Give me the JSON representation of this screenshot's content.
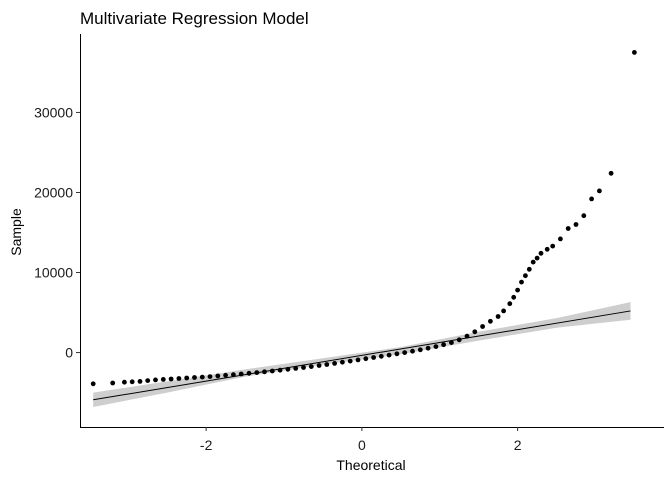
{
  "chart_data": {
    "type": "scatter",
    "title": "Multivariate Regression Model",
    "xlabel": "Theoretical",
    "ylabel": "Sample",
    "xlim": [
      -3.62,
      3.88
    ],
    "ylim": [
      -9300,
      39800
    ],
    "x_ticks": [
      -2,
      0,
      2
    ],
    "x_tick_labels": [
      "-2",
      "0",
      "2"
    ],
    "y_ticks": [
      0,
      10000,
      20000,
      30000
    ],
    "y_tick_labels": [
      "0",
      "10000",
      "20000",
      "30000"
    ],
    "grid": false,
    "legend": "none",
    "series": [
      {
        "kind": "qq-points",
        "color": "#000000",
        "points": [
          [
            -3.45,
            -3900
          ],
          [
            -3.2,
            -3800
          ],
          [
            -3.05,
            -3700
          ],
          [
            -2.95,
            -3650
          ],
          [
            -2.85,
            -3600
          ],
          [
            -2.75,
            -3500
          ],
          [
            -2.65,
            -3420
          ],
          [
            -2.55,
            -3350
          ],
          [
            -2.45,
            -3300
          ],
          [
            -2.35,
            -3240
          ],
          [
            -2.25,
            -3180
          ],
          [
            -2.15,
            -3120
          ],
          [
            -2.05,
            -3060
          ],
          [
            -1.95,
            -3000
          ],
          [
            -1.85,
            -2920
          ],
          [
            -1.75,
            -2840
          ],
          [
            -1.65,
            -2760
          ],
          [
            -1.55,
            -2680
          ],
          [
            -1.45,
            -2590
          ],
          [
            -1.35,
            -2500
          ],
          [
            -1.25,
            -2400
          ],
          [
            -1.15,
            -2300
          ],
          [
            -1.05,
            -2200
          ],
          [
            -0.95,
            -2090
          ],
          [
            -0.85,
            -1980
          ],
          [
            -0.75,
            -1870
          ],
          [
            -0.65,
            -1750
          ],
          [
            -0.55,
            -1620
          ],
          [
            -0.45,
            -1490
          ],
          [
            -0.35,
            -1350
          ],
          [
            -0.25,
            -1210
          ],
          [
            -0.15,
            -1070
          ],
          [
            -0.05,
            -920
          ],
          [
            0.05,
            -770
          ],
          [
            0.15,
            -620
          ],
          [
            0.25,
            -470
          ],
          [
            0.35,
            -320
          ],
          [
            0.45,
            -160
          ],
          [
            0.55,
            0
          ],
          [
            0.65,
            170
          ],
          [
            0.75,
            350
          ],
          [
            0.85,
            540
          ],
          [
            0.95,
            750
          ],
          [
            1.05,
            980
          ],
          [
            1.15,
            1250
          ],
          [
            1.25,
            1600
          ],
          [
            1.35,
            2050
          ],
          [
            1.45,
            2600
          ],
          [
            1.55,
            3250
          ],
          [
            1.65,
            3900
          ],
          [
            1.75,
            4500
          ],
          [
            1.82,
            5200
          ],
          [
            1.9,
            6100
          ],
          [
            1.95,
            6900
          ],
          [
            2.0,
            7800
          ],
          [
            2.05,
            8800
          ],
          [
            2.1,
            9600
          ],
          [
            2.15,
            10400
          ],
          [
            2.2,
            11300
          ],
          [
            2.25,
            11800
          ],
          [
            2.3,
            12400
          ],
          [
            2.38,
            12900
          ],
          [
            2.45,
            13300
          ],
          [
            2.55,
            14200
          ],
          [
            2.65,
            15500
          ],
          [
            2.75,
            16000
          ],
          [
            2.85,
            17100
          ],
          [
            2.95,
            19200
          ],
          [
            3.05,
            20200
          ],
          [
            3.2,
            22400
          ],
          [
            3.5,
            37500
          ]
        ]
      }
    ],
    "reference_line": {
      "x": [
        -3.45,
        3.45
      ],
      "y": [
        -5900,
        5200
      ],
      "color": "#000000"
    },
    "confidence_band": {
      "x": [
        -3.45,
        -2.5,
        -1.5,
        -0.5,
        0.5,
        1.5,
        2.5,
        3.45
      ],
      "lower": [
        -6800,
        -5000,
        -3000,
        -1500,
        -200,
        1500,
        3100,
        4100
      ],
      "upper": [
        -5000,
        -3600,
        -2100,
        -700,
        700,
        2600,
        4300,
        6300
      ],
      "color": "#bebebe"
    }
  }
}
